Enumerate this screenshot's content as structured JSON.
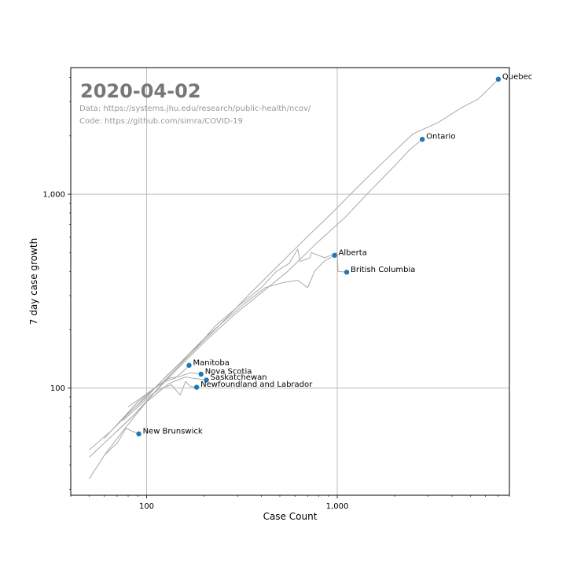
{
  "chart_data": {
    "type": "scatter",
    "date_title": "2020-04-02",
    "source_data": "Data: https://systems.jhu.edu/research/public-health/ncov/",
    "source_code": "Code: https://github.com/simra/COVID-19",
    "xlabel": "Case Count",
    "ylabel": "7 day case growth",
    "x_scale": "log",
    "y_scale": "log",
    "xlim": [
      40,
      8000
    ],
    "ylim": [
      28,
      4500
    ],
    "x_ticks": [
      {
        "value": 100,
        "label": "100"
      },
      {
        "value": 1000,
        "label": "1,000"
      }
    ],
    "y_ticks": [
      {
        "value": 100,
        "label": "100"
      },
      {
        "value": 1000,
        "label": "1,000"
      }
    ],
    "grid": true,
    "line_color": "#aaaaaa",
    "point_color": "#1f77b4",
    "series": [
      {
        "name": "Quebec",
        "x": 6997,
        "y": 3920,
        "trail": [
          [
            50,
            34
          ],
          [
            60,
            45
          ],
          [
            75,
            60
          ],
          [
            95,
            80
          ],
          [
            125,
            110
          ],
          [
            170,
            150
          ],
          [
            240,
            210
          ],
          [
            340,
            300
          ],
          [
            480,
            420
          ],
          [
            680,
            590
          ],
          [
            950,
            810
          ],
          [
            1340,
            1140
          ],
          [
            1900,
            1590
          ],
          [
            2500,
            2050
          ],
          [
            3400,
            2350
          ],
          [
            4500,
            2800
          ],
          [
            5500,
            3100
          ],
          [
            6997,
            3920
          ]
        ]
      },
      {
        "name": "Ontario",
        "x": 2793,
        "y": 1920,
        "trail": [
          [
            50,
            44
          ],
          [
            65,
            56
          ],
          [
            85,
            72
          ],
          [
            110,
            95
          ],
          [
            150,
            130
          ],
          [
            210,
            180
          ],
          [
            290,
            240
          ],
          [
            400,
            310
          ],
          [
            550,
            400
          ],
          [
            780,
            560
          ],
          [
            1100,
            760
          ],
          [
            1500,
            1050
          ],
          [
            2000,
            1400
          ],
          [
            2400,
            1700
          ],
          [
            2793,
            1920
          ]
        ]
      },
      {
        "name": "Alberta",
        "x": 968,
        "y": 484,
        "trail": [
          [
            50,
            48
          ],
          [
            65,
            60
          ],
          [
            85,
            78
          ],
          [
            110,
            100
          ],
          [
            150,
            135
          ],
          [
            200,
            180
          ],
          [
            260,
            225
          ],
          [
            330,
            275
          ],
          [
            420,
            330
          ],
          [
            520,
            350
          ],
          [
            620,
            360
          ],
          [
            700,
            330
          ],
          [
            760,
            400
          ],
          [
            850,
            450
          ],
          [
            968,
            484
          ]
        ]
      },
      {
        "name": "British Columbia",
        "x": 1121,
        "y": 396,
        "trail": [
          [
            75,
            70
          ],
          [
            100,
            90
          ],
          [
            130,
            118
          ],
          [
            170,
            150
          ],
          [
            230,
            210
          ],
          [
            310,
            270
          ],
          [
            400,
            330
          ],
          [
            480,
            400
          ],
          [
            560,
            440
          ],
          [
            620,
            520
          ],
          [
            640,
            450
          ],
          [
            720,
            470
          ],
          [
            730,
            500
          ],
          [
            860,
            470
          ],
          [
            1000,
            500
          ],
          [
            1010,
            400
          ],
          [
            1121,
            396
          ]
        ]
      },
      {
        "name": "Manitoba",
        "x": 167,
        "y": 131,
        "trail": [
          [
            80,
            80
          ],
          [
            95,
            90
          ],
          [
            110,
            100
          ],
          [
            125,
            108
          ],
          [
            140,
            112
          ],
          [
            150,
            118
          ],
          [
            158,
            124
          ],
          [
            167,
            131
          ]
        ]
      },
      {
        "name": "Nova Scotia",
        "x": 193,
        "y": 118,
        "trail": [
          [
            60,
            55
          ],
          [
            75,
            70
          ],
          [
            90,
            85
          ],
          [
            110,
            100
          ],
          [
            130,
            112
          ],
          [
            150,
            115
          ],
          [
            170,
            120
          ],
          [
            193,
            118
          ]
        ]
      },
      {
        "name": "Saskatchewan",
        "x": 206,
        "y": 110,
        "trail": [
          [
            70,
            60
          ],
          [
            85,
            72
          ],
          [
            100,
            85
          ],
          [
            115,
            95
          ],
          [
            130,
            105
          ],
          [
            145,
            110
          ],
          [
            160,
            114
          ],
          [
            180,
            112
          ],
          [
            206,
            110
          ]
        ]
      },
      {
        "name": "Newfoundland and Labrador",
        "x": 183,
        "y": 101,
        "trail": [
          [
            75,
            68
          ],
          [
            90,
            80
          ],
          [
            105,
            92
          ],
          [
            120,
            100
          ],
          [
            135,
            104
          ],
          [
            150,
            92
          ],
          [
            160,
            108
          ],
          [
            170,
            102
          ],
          [
            183,
            101
          ]
        ]
      },
      {
        "name": "New Brunswick",
        "x": 91,
        "y": 58,
        "trail": [
          [
            60,
            45
          ],
          [
            70,
            52
          ],
          [
            78,
            62
          ],
          [
            84,
            60
          ],
          [
            91,
            58
          ]
        ]
      }
    ]
  }
}
